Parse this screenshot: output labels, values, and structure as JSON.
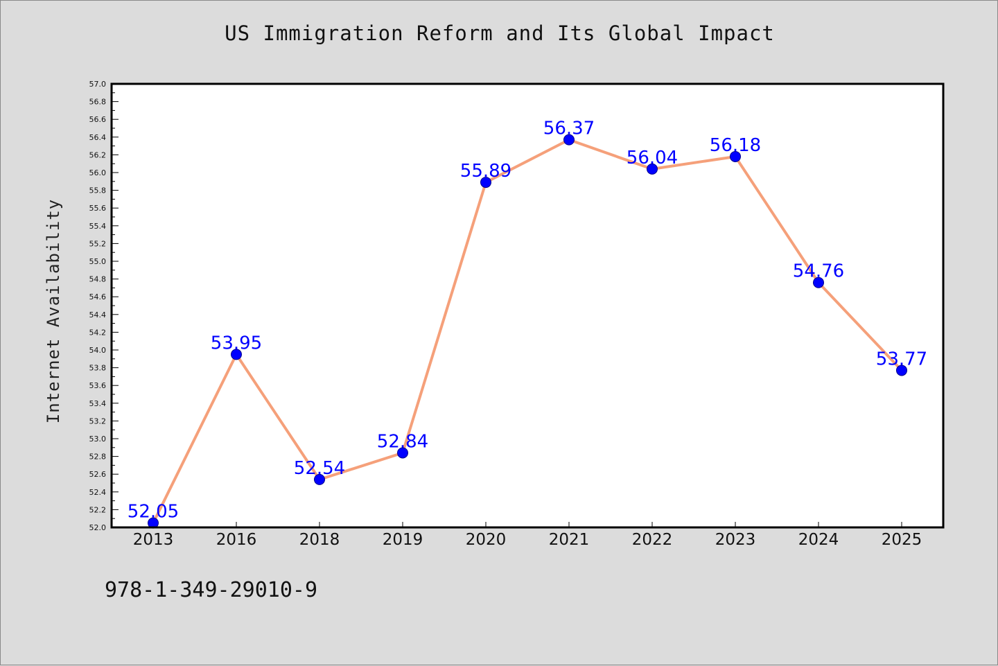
{
  "colors": {
    "background": "#dcdcdc",
    "plot_background": "#ffffff",
    "line": "#f5a07a",
    "marker": "#0000ff",
    "data_label": "#0000ff"
  },
  "footer": {
    "isbn": "978-1-349-29010-9"
  },
  "chart_data": {
    "type": "line",
    "title": "US Immigration Reform and Its Global Impact",
    "xlabel": "",
    "ylabel": "Internet Availability",
    "categories": [
      "2013",
      "2016",
      "2018",
      "2019",
      "2020",
      "2021",
      "2022",
      "2023",
      "2024",
      "2025"
    ],
    "series": [
      {
        "values": [
          52.05,
          53.95,
          52.54,
          52.84,
          55.89,
          56.37,
          56.04,
          56.18,
          54.76,
          53.77
        ],
        "labels": [
          "52.05",
          "53.95",
          "52.54",
          "52.84",
          "55.89",
          "56.37",
          "56.04",
          "56.18",
          "54.76",
          "53.77"
        ]
      }
    ],
    "ylim": [
      52.0,
      57.0
    ],
    "yticks": [
      "52.0",
      "52.2",
      "52.4",
      "52.6",
      "52.8",
      "53.0",
      "53.2",
      "53.4",
      "53.6",
      "53.8",
      "54.0",
      "54.2",
      "54.4",
      "54.6",
      "54.8",
      "55.0",
      "55.2",
      "55.4",
      "55.6",
      "55.8",
      "56.0",
      "56.2",
      "56.4",
      "56.6",
      "56.8",
      "57.0"
    ],
    "grid": false,
    "legend": "none"
  }
}
